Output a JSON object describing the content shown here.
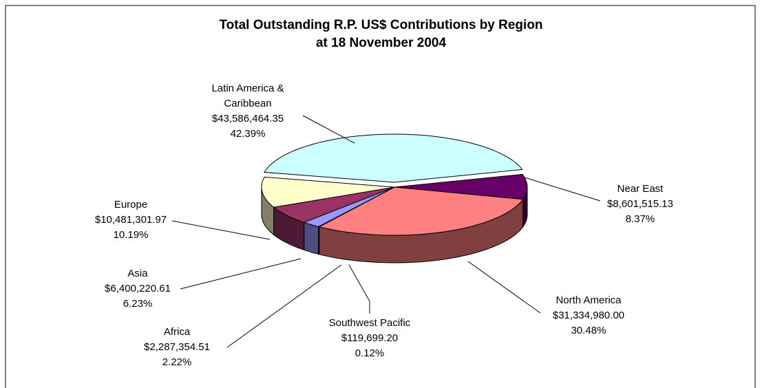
{
  "chart_data": {
    "type": "pie",
    "title": "Total Outstanding R.P. US$ Contributions by Region",
    "subtitle": "at 18 November 2004",
    "categories": [
      "Latin America & Caribbean",
      "Near East",
      "North America",
      "Southwest Pacific",
      "Africa",
      "Asia",
      "Europe"
    ],
    "values": [
      43586464.35,
      8601515.13,
      31334980.0,
      119699.2,
      2287354.51,
      6400220.61,
      10481301.97
    ],
    "value_labels": [
      "$43,586,464.35",
      "$8,601,515.13",
      "$31,334,980.00",
      "$119,699.20",
      "$2,287,354.51",
      "$6,400,220.61",
      "$10,481,301.97"
    ],
    "percents": [
      42.39,
      8.37,
      30.48,
      0.12,
      2.22,
      6.23,
      10.19
    ],
    "percent_labels": [
      "42.39%",
      "8.37%",
      "30.48%",
      "0.12%",
      "2.22%",
      "6.23%",
      "10.19%"
    ],
    "colors": [
      "#ccffff",
      "#660066",
      "#ff8080",
      "#0066cc",
      "#9999ff",
      "#993366",
      "#ffffcc"
    ]
  }
}
